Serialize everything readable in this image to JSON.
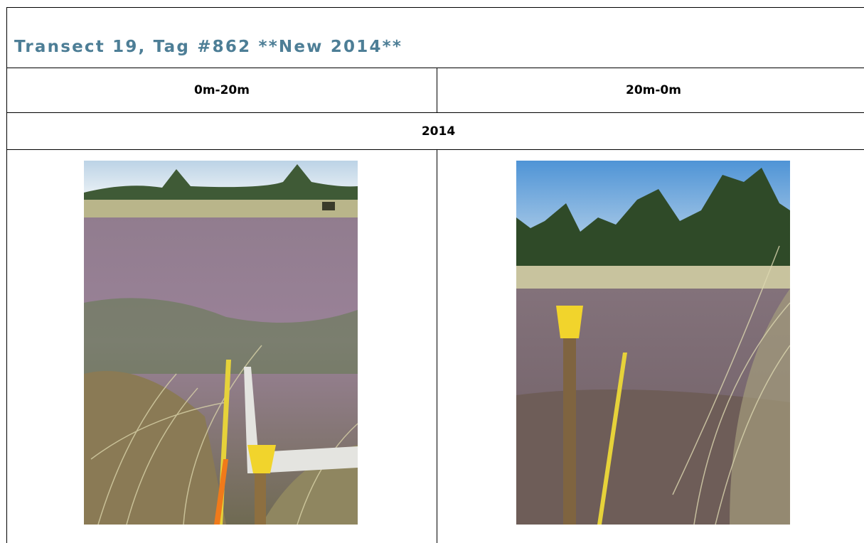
{
  "header": {
    "title": "Transect 19, Tag #862 **New 2014**"
  },
  "table": {
    "columns": [
      "0m-20m",
      "20m-0m"
    ],
    "year": "2014"
  }
}
